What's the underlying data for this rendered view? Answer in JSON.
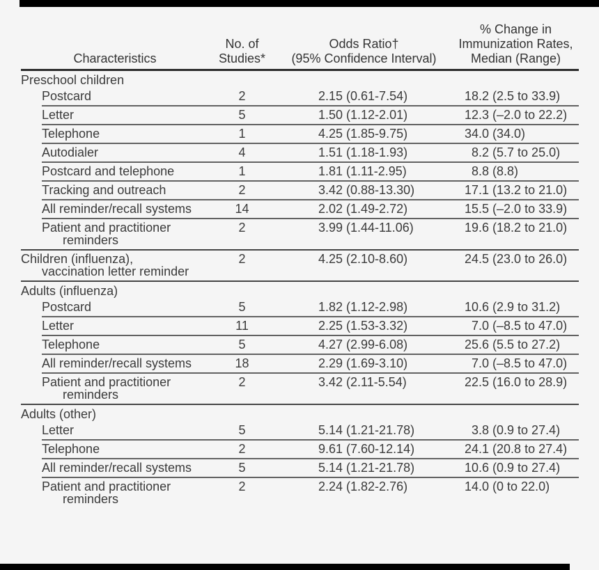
{
  "colors": {
    "background": "#f5f5f5",
    "text": "#3a3a3a",
    "header_text": "#333333",
    "row_rule": "#616161",
    "section_rule": "#454545",
    "header_rule": "#2b2b2b",
    "edge_bar": "#000000"
  },
  "table": {
    "header": {
      "characteristics": [
        "Characteristics"
      ],
      "no_of_studies": [
        "No. of",
        "Studies*"
      ],
      "odds_ratio": [
        "Odds Ratio†",
        "(95% Confidence Interval)"
      ],
      "pct_change": [
        "% Change in",
        "Immunization Rates,",
        "Median (Range)"
      ]
    },
    "sections": [
      {
        "group_label": "Preschool children",
        "rows": [
          {
            "characteristic": [
              "Postcard"
            ],
            "studies": "2",
            "odds_ratio": "2.15 (0.61-7.54)",
            "pct_change": "18.2 (2.5 to 33.9)",
            "rule": "indent",
            "level": "item"
          },
          {
            "characteristic": [
              "Letter"
            ],
            "studies": "5",
            "odds_ratio": "1.50 (1.12-2.01)",
            "pct_change": "12.3 (–2.0 to 22.2)",
            "rule": "indent",
            "level": "item"
          },
          {
            "characteristic": [
              "Telephone"
            ],
            "studies": "1",
            "odds_ratio": "4.25 (1.85-9.75)",
            "pct_change": "34.0 (34.0)",
            "rule": "indent",
            "level": "item"
          },
          {
            "characteristic": [
              "Autodialer"
            ],
            "studies": "4",
            "odds_ratio": "1.51 (1.18-1.93)",
            "pct_change": "  8.2 (5.7 to 25.0)",
            "rule": "indent",
            "level": "item"
          },
          {
            "characteristic": [
              "Postcard and telephone"
            ],
            "studies": "1",
            "odds_ratio": "1.81 (1.11-2.95)",
            "pct_change": "  8.8 (8.8)",
            "rule": "indent",
            "level": "item"
          },
          {
            "characteristic": [
              "Tracking and outreach"
            ],
            "studies": "2",
            "odds_ratio": "3.42 (0.88-13.30)",
            "pct_change": "17.1 (13.2 to 21.0)",
            "rule": "indent",
            "level": "item"
          },
          {
            "characteristic": [
              "All reminder/recall systems"
            ],
            "studies": "14",
            "odds_ratio": "2.02 (1.49-2.72)",
            "pct_change": "15.5 (–2.0 to 33.9)",
            "rule": "indent",
            "level": "item"
          },
          {
            "characteristic": [
              "Patient and practitioner",
              "reminders"
            ],
            "studies": "2",
            "odds_ratio": "3.99 (1.44-11.06)",
            "pct_change": "19.6 (18.2 to 21.0)",
            "rule": "full",
            "level": "item"
          }
        ]
      },
      {
        "group_label": null,
        "rows": [
          {
            "characteristic": [
              "Children (influenza),",
              "vaccination letter reminder"
            ],
            "studies": "2",
            "odds_ratio": "4.25 (2.10-8.60)",
            "pct_change": "24.5 (23.0 to 26.0)",
            "rule": "full",
            "level": "group"
          }
        ]
      },
      {
        "group_label": "Adults (influenza)",
        "rows": [
          {
            "characteristic": [
              "Postcard"
            ],
            "studies": "5",
            "odds_ratio": "1.82 (1.12-2.98)",
            "pct_change": "10.6 (2.9 to 31.2)",
            "rule": "indent",
            "level": "item"
          },
          {
            "characteristic": [
              "Letter"
            ],
            "studies": "11",
            "odds_ratio": "2.25 (1.53-3.32)",
            "pct_change": "  7.0 (–8.5 to 47.0)",
            "rule": "indent",
            "level": "item"
          },
          {
            "characteristic": [
              "Telephone"
            ],
            "studies": "5",
            "odds_ratio": "4.27 (2.99-6.08)",
            "pct_change": "25.6 (5.5 to 27.2)",
            "rule": "indent",
            "level": "item"
          },
          {
            "characteristic": [
              "All reminder/recall systems"
            ],
            "studies": "18",
            "odds_ratio": "2.29 (1.69-3.10)",
            "pct_change": "  7.0 (–8.5 to 47.0)",
            "rule": "indent",
            "level": "item"
          },
          {
            "characteristic": [
              "Patient and practitioner",
              "reminders"
            ],
            "studies": "2",
            "odds_ratio": "3.42 (2.11-5.54)",
            "pct_change": "22.5 (16.0 to 28.9)",
            "rule": "full",
            "level": "item"
          }
        ]
      },
      {
        "group_label": "Adults (other)",
        "rows": [
          {
            "characteristic": [
              "Letter"
            ],
            "studies": "5",
            "odds_ratio": "5.14 (1.21-21.78)",
            "pct_change": "  3.8 (0.9 to 27.4)",
            "rule": "indent",
            "level": "item"
          },
          {
            "characteristic": [
              "Telephone"
            ],
            "studies": "2",
            "odds_ratio": "9.61 (7.60-12.14)",
            "pct_change": "24.1 (20.8 to 27.4)",
            "rule": "indent",
            "level": "item"
          },
          {
            "characteristic": [
              "All reminder/recall systems"
            ],
            "studies": "5",
            "odds_ratio": "5.14 (1.21-21.78)",
            "pct_change": "10.6 (0.9 to 27.4)",
            "rule": "indent",
            "level": "item"
          },
          {
            "characteristic": [
              "Patient and practitioner",
              "reminders"
            ],
            "studies": "2",
            "odds_ratio": "2.24 (1.82-2.76)",
            "pct_change": "14.0 (0 to 22.0)",
            "rule": "none",
            "level": "item"
          }
        ]
      }
    ]
  }
}
